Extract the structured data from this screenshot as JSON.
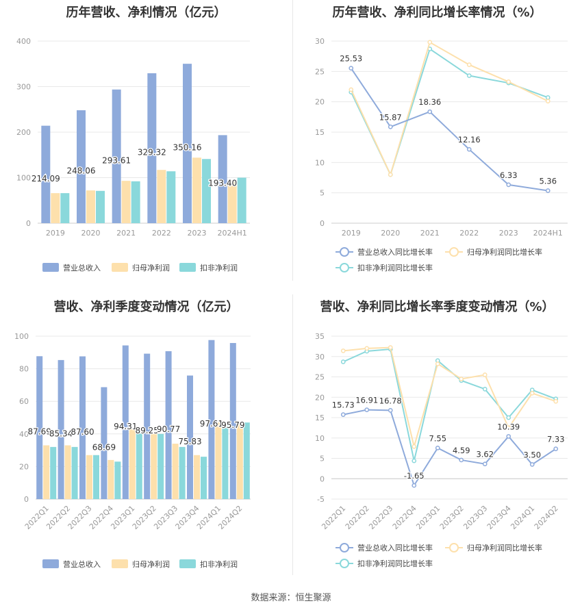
{
  "source": "数据来源：恒生聚源",
  "colors": {
    "revenue": "#8eaadb",
    "parent": "#fde0ac",
    "deducted": "#8ad8db",
    "axis": "#999999",
    "grid": "#e8e8e8"
  },
  "chart_data": [
    {
      "type": "bar",
      "title": "历年营收、净利情况（亿元）",
      "categories": [
        "2019",
        "2020",
        "2021",
        "2022",
        "2023",
        "2024H1"
      ],
      "ylim": [
        0,
        400
      ],
      "yticks": [
        0,
        100,
        200,
        300,
        400
      ],
      "series": [
        {
          "name": "营业总收入",
          "values": [
            214.09,
            248.06,
            293.61,
            329.32,
            350.16,
            193.4
          ],
          "labels": [
            "214.09",
            "248.06",
            "293.61",
            "329.32",
            "350.16",
            "193.40"
          ]
        },
        {
          "name": "归母净利润",
          "values": [
            66,
            72,
            93,
            117,
            144,
            92
          ]
        },
        {
          "name": "扣非净利润",
          "values": [
            66,
            71,
            92,
            114,
            141,
            100
          ]
        }
      ],
      "legend": "bottom"
    },
    {
      "type": "line",
      "title": "历年营收、净利同比增长率情况（%）",
      "categories": [
        "2019",
        "2020",
        "2021",
        "2022",
        "2023",
        "2024H1"
      ],
      "ylim": [
        0,
        30
      ],
      "yticks": [
        0,
        5,
        10,
        15,
        20,
        25,
        30
      ],
      "series": [
        {
          "name": "营业总收入同比增长率",
          "values": [
            25.53,
            15.87,
            18.36,
            12.16,
            6.33,
            5.36
          ],
          "labels": [
            "25.53",
            "15.87",
            "18.36",
            "12.16",
            "6.33",
            "5.36"
          ]
        },
        {
          "name": "归母净利润同比增长率",
          "values": [
            22.0,
            8.0,
            29.8,
            26.1,
            23.3,
            20.1
          ]
        },
        {
          "name": "扣非净利润同比增长率",
          "values": [
            21.6,
            8.0,
            28.7,
            24.3,
            23.1,
            20.7
          ]
        }
      ],
      "legend": "bottom"
    },
    {
      "type": "bar",
      "title": "营收、净利季度变动情况（亿元）",
      "categories": [
        "2022Q1",
        "2022Q2",
        "2022Q3",
        "2022Q4",
        "2023Q1",
        "2023Q2",
        "2023Q3",
        "2023Q4",
        "2024Q1",
        "2024Q2"
      ],
      "ylim": [
        0,
        100
      ],
      "yticks": [
        0,
        20,
        40,
        60,
        80,
        100
      ],
      "series": [
        {
          "name": "营业总收入",
          "values": [
            87.69,
            85.34,
            87.6,
            68.69,
            94.31,
            89.25,
            90.77,
            75.83,
            97.61,
            95.79
          ],
          "labels": [
            "87.69",
            "85.34",
            "87.60",
            "68.69",
            "94.31",
            "89.25",
            "90.77",
            "75.83",
            "97.61",
            "95.79"
          ]
        },
        {
          "name": "归母净利润",
          "values": [
            33,
            33,
            27,
            24,
            43,
            41,
            34,
            27,
            47,
            46
          ]
        },
        {
          "name": "扣非净利润",
          "values": [
            32,
            32,
            27,
            23,
            42,
            40,
            32,
            26,
            46,
            47
          ]
        }
      ],
      "legend": "bottom"
    },
    {
      "type": "line",
      "title": "营收、净利同比增长率季度变动情况（%）",
      "categories": [
        "2022Q1",
        "2022Q2",
        "2022Q3",
        "2022Q4",
        "2023Q1",
        "2023Q2",
        "2023Q3",
        "2023Q4",
        "2024Q1",
        "2024Q2"
      ],
      "ylim": [
        -5,
        35
      ],
      "yticks": [
        -5,
        0,
        5,
        10,
        15,
        20,
        25,
        30,
        35
      ],
      "series": [
        {
          "name": "营业总收入同比增长率",
          "values": [
            15.73,
            16.91,
            16.78,
            -1.65,
            7.55,
            4.59,
            3.62,
            10.39,
            3.5,
            7.33
          ],
          "labels": [
            "15.73",
            "16.91",
            "16.78",
            "-1.65",
            "7.55",
            "4.59",
            "3.62",
            "10.39",
            "3.50",
            "7.33"
          ]
        },
        {
          "name": "归母净利润同比增长率",
          "values": [
            31.4,
            32.0,
            32.2,
            7.9,
            28.2,
            24.5,
            25.5,
            12.5,
            21.0,
            19.0
          ]
        },
        {
          "name": "扣非净利润同比增长率",
          "values": [
            28.7,
            31.3,
            31.8,
            4.4,
            29.0,
            24.1,
            22.0,
            15.0,
            21.8,
            19.6
          ]
        }
      ],
      "legend": "bottom"
    }
  ]
}
